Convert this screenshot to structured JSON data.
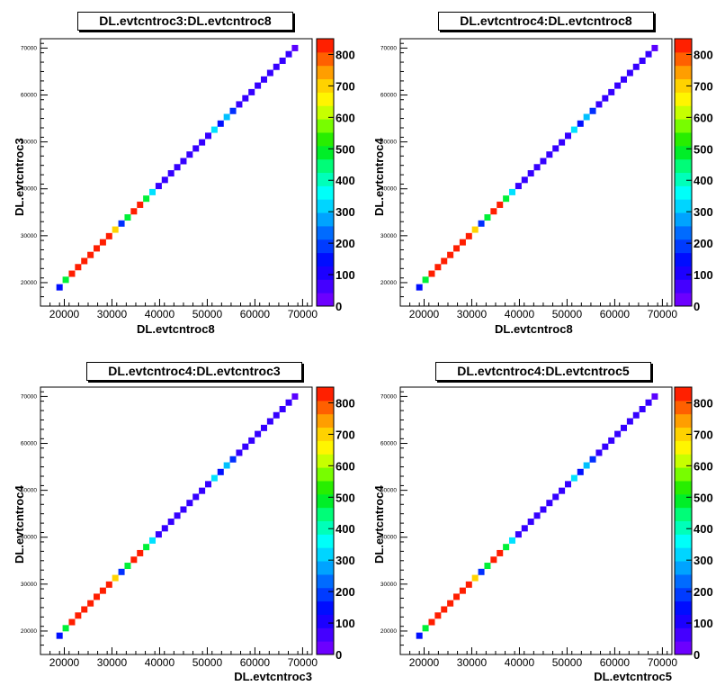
{
  "chart_data": [
    {
      "type": "heatmap",
      "title": "DL.evtcntroc3:DL.evtcntroc8",
      "xlabel": "DL.evtcntroc8",
      "ylabel": "DL.evtcntroc3",
      "xlim": [
        15000,
        72000
      ],
      "ylim": [
        15000,
        72000
      ],
      "x_ticks": [
        20000,
        30000,
        40000,
        50000,
        60000,
        70000
      ],
      "y_ticks": [
        20000,
        30000,
        40000,
        50000,
        60000,
        70000
      ],
      "z_ticks": [
        "0",
        "100",
        "200",
        "300",
        "400",
        "500",
        "600",
        "700",
        "800"
      ],
      "zlim": [
        0,
        850
      ],
      "points": [
        {
          "x": 19000,
          "y": 19000,
          "z": 150
        },
        {
          "x": 20300,
          "y": 20600,
          "z": 480
        },
        {
          "x": 21600,
          "y": 21900,
          "z": 830
        },
        {
          "x": 22900,
          "y": 23300,
          "z": 830
        },
        {
          "x": 24200,
          "y": 24600,
          "z": 830
        },
        {
          "x": 25500,
          "y": 25900,
          "z": 830
        },
        {
          "x": 26800,
          "y": 27300,
          "z": 830
        },
        {
          "x": 28100,
          "y": 28600,
          "z": 830
        },
        {
          "x": 29400,
          "y": 29900,
          "z": 830
        },
        {
          "x": 30700,
          "y": 31300,
          "z": 700
        },
        {
          "x": 32000,
          "y": 32600,
          "z": 180
        },
        {
          "x": 33300,
          "y": 33900,
          "z": 480
        },
        {
          "x": 34600,
          "y": 35200,
          "z": 830
        },
        {
          "x": 35900,
          "y": 36600,
          "z": 830
        },
        {
          "x": 37200,
          "y": 37900,
          "z": 480
        },
        {
          "x": 38500,
          "y": 39300,
          "z": 330
        },
        {
          "x": 39800,
          "y": 40600,
          "z": 80
        },
        {
          "x": 41100,
          "y": 41900,
          "z": 80
        },
        {
          "x": 42400,
          "y": 43300,
          "z": 80
        },
        {
          "x": 43700,
          "y": 44600,
          "z": 80
        },
        {
          "x": 45000,
          "y": 45900,
          "z": 80
        },
        {
          "x": 46300,
          "y": 47300,
          "z": 80
        },
        {
          "x": 47600,
          "y": 48600,
          "z": 80
        },
        {
          "x": 48900,
          "y": 49900,
          "z": 80
        },
        {
          "x": 50200,
          "y": 51300,
          "z": 80
        },
        {
          "x": 51500,
          "y": 52600,
          "z": 330
        },
        {
          "x": 52800,
          "y": 53900,
          "z": 150
        },
        {
          "x": 54100,
          "y": 55300,
          "z": 300
        },
        {
          "x": 55400,
          "y": 56600,
          "z": 180
        },
        {
          "x": 56700,
          "y": 58000,
          "z": 80
        },
        {
          "x": 58000,
          "y": 59300,
          "z": 80
        },
        {
          "x": 59300,
          "y": 60600,
          "z": 80
        },
        {
          "x": 60600,
          "y": 62000,
          "z": 80
        },
        {
          "x": 61900,
          "y": 63300,
          "z": 80
        },
        {
          "x": 63200,
          "y": 64700,
          "z": 80
        },
        {
          "x": 64500,
          "y": 66000,
          "z": 80
        },
        {
          "x": 65800,
          "y": 67300,
          "z": 80
        },
        {
          "x": 67100,
          "y": 68700,
          "z": 80
        },
        {
          "x": 68400,
          "y": 70000,
          "z": 40
        }
      ]
    },
    {
      "type": "heatmap",
      "title": "DL.evtcntroc4:DL.evtcntroc8",
      "xlabel": "DL.evtcntroc8",
      "ylabel": "DL.evtcntroc4",
      "xlim": [
        15000,
        72000
      ],
      "ylim": [
        15000,
        72000
      ],
      "x_ticks": [
        20000,
        30000,
        40000,
        50000,
        60000,
        70000
      ],
      "y_ticks": [
        20000,
        30000,
        40000,
        50000,
        60000,
        70000
      ],
      "z_ticks": [
        "0",
        "100",
        "200",
        "300",
        "400",
        "500",
        "600",
        "700",
        "800"
      ],
      "zlim": [
        0,
        850
      ],
      "points": [
        {
          "x": 19000,
          "y": 19000,
          "z": 150
        },
        {
          "x": 20300,
          "y": 20600,
          "z": 480
        },
        {
          "x": 21600,
          "y": 21900,
          "z": 830
        },
        {
          "x": 22900,
          "y": 23300,
          "z": 830
        },
        {
          "x": 24200,
          "y": 24600,
          "z": 830
        },
        {
          "x": 25500,
          "y": 25900,
          "z": 830
        },
        {
          "x": 26800,
          "y": 27300,
          "z": 830
        },
        {
          "x": 28100,
          "y": 28600,
          "z": 830
        },
        {
          "x": 29400,
          "y": 29900,
          "z": 830
        },
        {
          "x": 30700,
          "y": 31300,
          "z": 700
        },
        {
          "x": 32000,
          "y": 32600,
          "z": 180
        },
        {
          "x": 33300,
          "y": 33900,
          "z": 480
        },
        {
          "x": 34600,
          "y": 35200,
          "z": 830
        },
        {
          "x": 35900,
          "y": 36600,
          "z": 830
        },
        {
          "x": 37200,
          "y": 37900,
          "z": 480
        },
        {
          "x": 38500,
          "y": 39300,
          "z": 330
        },
        {
          "x": 39800,
          "y": 40600,
          "z": 80
        },
        {
          "x": 41100,
          "y": 41900,
          "z": 80
        },
        {
          "x": 42400,
          "y": 43300,
          "z": 80
        },
        {
          "x": 43700,
          "y": 44600,
          "z": 80
        },
        {
          "x": 45000,
          "y": 45900,
          "z": 80
        },
        {
          "x": 46300,
          "y": 47300,
          "z": 80
        },
        {
          "x": 47600,
          "y": 48600,
          "z": 80
        },
        {
          "x": 48900,
          "y": 49900,
          "z": 80
        },
        {
          "x": 50200,
          "y": 51300,
          "z": 80
        },
        {
          "x": 51500,
          "y": 52600,
          "z": 330
        },
        {
          "x": 52800,
          "y": 53900,
          "z": 150
        },
        {
          "x": 54100,
          "y": 55300,
          "z": 300
        },
        {
          "x": 55400,
          "y": 56600,
          "z": 180
        },
        {
          "x": 56700,
          "y": 58000,
          "z": 80
        },
        {
          "x": 58000,
          "y": 59300,
          "z": 80
        },
        {
          "x": 59300,
          "y": 60600,
          "z": 80
        },
        {
          "x": 60600,
          "y": 62000,
          "z": 80
        },
        {
          "x": 61900,
          "y": 63300,
          "z": 80
        },
        {
          "x": 63200,
          "y": 64700,
          "z": 80
        },
        {
          "x": 64500,
          "y": 66000,
          "z": 80
        },
        {
          "x": 65800,
          "y": 67300,
          "z": 80
        },
        {
          "x": 67100,
          "y": 68700,
          "z": 80
        },
        {
          "x": 68400,
          "y": 70000,
          "z": 40
        }
      ]
    },
    {
      "type": "heatmap",
      "title": "DL.evtcntroc4:DL.evtcntroc3",
      "xlabel": "DL.evtcntroc3",
      "ylabel": "DL.evtcntroc4",
      "xlim": [
        15000,
        72000
      ],
      "ylim": [
        15000,
        72000
      ],
      "x_ticks": [
        20000,
        30000,
        40000,
        50000,
        60000,
        70000
      ],
      "y_ticks": [
        20000,
        30000,
        40000,
        50000,
        60000,
        70000
      ],
      "z_ticks": [
        "0",
        "100",
        "200",
        "300",
        "400",
        "500",
        "600",
        "700",
        "800"
      ],
      "zlim": [
        0,
        850
      ],
      "points": [
        {
          "x": 19000,
          "y": 19000,
          "z": 150
        },
        {
          "x": 20300,
          "y": 20600,
          "z": 480
        },
        {
          "x": 21600,
          "y": 21900,
          "z": 830
        },
        {
          "x": 22900,
          "y": 23300,
          "z": 830
        },
        {
          "x": 24200,
          "y": 24600,
          "z": 830
        },
        {
          "x": 25500,
          "y": 25900,
          "z": 830
        },
        {
          "x": 26800,
          "y": 27300,
          "z": 830
        },
        {
          "x": 28100,
          "y": 28600,
          "z": 830
        },
        {
          "x": 29400,
          "y": 29900,
          "z": 830
        },
        {
          "x": 30700,
          "y": 31300,
          "z": 700
        },
        {
          "x": 32000,
          "y": 32600,
          "z": 180
        },
        {
          "x": 33300,
          "y": 33900,
          "z": 480
        },
        {
          "x": 34600,
          "y": 35200,
          "z": 830
        },
        {
          "x": 35900,
          "y": 36600,
          "z": 830
        },
        {
          "x": 37200,
          "y": 37900,
          "z": 480
        },
        {
          "x": 38500,
          "y": 39300,
          "z": 330
        },
        {
          "x": 39800,
          "y": 40600,
          "z": 80
        },
        {
          "x": 41100,
          "y": 41900,
          "z": 80
        },
        {
          "x": 42400,
          "y": 43300,
          "z": 80
        },
        {
          "x": 43700,
          "y": 44600,
          "z": 80
        },
        {
          "x": 45000,
          "y": 45900,
          "z": 80
        },
        {
          "x": 46300,
          "y": 47300,
          "z": 80
        },
        {
          "x": 47600,
          "y": 48600,
          "z": 80
        },
        {
          "x": 48900,
          "y": 49900,
          "z": 80
        },
        {
          "x": 50200,
          "y": 51300,
          "z": 80
        },
        {
          "x": 51500,
          "y": 52600,
          "z": 330
        },
        {
          "x": 52800,
          "y": 53900,
          "z": 150
        },
        {
          "x": 54100,
          "y": 55300,
          "z": 300
        },
        {
          "x": 55400,
          "y": 56600,
          "z": 180
        },
        {
          "x": 56700,
          "y": 58000,
          "z": 80
        },
        {
          "x": 58000,
          "y": 59300,
          "z": 80
        },
        {
          "x": 59300,
          "y": 60600,
          "z": 80
        },
        {
          "x": 60600,
          "y": 62000,
          "z": 80
        },
        {
          "x": 61900,
          "y": 63300,
          "z": 80
        },
        {
          "x": 63200,
          "y": 64700,
          "z": 80
        },
        {
          "x": 64500,
          "y": 66000,
          "z": 80
        },
        {
          "x": 65800,
          "y": 67300,
          "z": 80
        },
        {
          "x": 67100,
          "y": 68700,
          "z": 80
        },
        {
          "x": 68400,
          "y": 70000,
          "z": 40
        }
      ]
    },
    {
      "type": "heatmap",
      "title": "DL.evtcntroc4:DL.evtcntroc5",
      "xlabel": "DL.evtcntroc5",
      "ylabel": "DL.evtcntroc4",
      "xlim": [
        15000,
        72000
      ],
      "ylim": [
        15000,
        72000
      ],
      "x_ticks": [
        20000,
        30000,
        40000,
        50000,
        60000,
        70000
      ],
      "y_ticks": [
        20000,
        30000,
        40000,
        50000,
        60000,
        70000
      ],
      "z_ticks": [
        "0",
        "100",
        "200",
        "300",
        "400",
        "500",
        "600",
        "700",
        "800"
      ],
      "zlim": [
        0,
        850
      ],
      "points": [
        {
          "x": 19000,
          "y": 19000,
          "z": 150
        },
        {
          "x": 20300,
          "y": 20600,
          "z": 480
        },
        {
          "x": 21600,
          "y": 21900,
          "z": 830
        },
        {
          "x": 22900,
          "y": 23300,
          "z": 830
        },
        {
          "x": 24200,
          "y": 24600,
          "z": 830
        },
        {
          "x": 25500,
          "y": 25900,
          "z": 830
        },
        {
          "x": 26800,
          "y": 27300,
          "z": 830
        },
        {
          "x": 28100,
          "y": 28600,
          "z": 830
        },
        {
          "x": 29400,
          "y": 29900,
          "z": 830
        },
        {
          "x": 30700,
          "y": 31300,
          "z": 700
        },
        {
          "x": 32000,
          "y": 32600,
          "z": 180
        },
        {
          "x": 33300,
          "y": 33900,
          "z": 480
        },
        {
          "x": 34600,
          "y": 35200,
          "z": 830
        },
        {
          "x": 35900,
          "y": 36600,
          "z": 830
        },
        {
          "x": 37200,
          "y": 37900,
          "z": 480
        },
        {
          "x": 38500,
          "y": 39300,
          "z": 330
        },
        {
          "x": 39800,
          "y": 40600,
          "z": 80
        },
        {
          "x": 41100,
          "y": 41900,
          "z": 80
        },
        {
          "x": 42400,
          "y": 43300,
          "z": 80
        },
        {
          "x": 43700,
          "y": 44600,
          "z": 80
        },
        {
          "x": 45000,
          "y": 45900,
          "z": 80
        },
        {
          "x": 46300,
          "y": 47300,
          "z": 80
        },
        {
          "x": 47600,
          "y": 48600,
          "z": 80
        },
        {
          "x": 48900,
          "y": 49900,
          "z": 80
        },
        {
          "x": 50200,
          "y": 51300,
          "z": 80
        },
        {
          "x": 51500,
          "y": 52600,
          "z": 330
        },
        {
          "x": 52800,
          "y": 53900,
          "z": 150
        },
        {
          "x": 54100,
          "y": 55300,
          "z": 300
        },
        {
          "x": 55400,
          "y": 56600,
          "z": 180
        },
        {
          "x": 56700,
          "y": 58000,
          "z": 80
        },
        {
          "x": 58000,
          "y": 59300,
          "z": 80
        },
        {
          "x": 59300,
          "y": 60600,
          "z": 80
        },
        {
          "x": 60600,
          "y": 62000,
          "z": 80
        },
        {
          "x": 61900,
          "y": 63300,
          "z": 80
        },
        {
          "x": 63200,
          "y": 64700,
          "z": 80
        },
        {
          "x": 64500,
          "y": 66000,
          "z": 80
        },
        {
          "x": 65800,
          "y": 67300,
          "z": 80
        },
        {
          "x": 67100,
          "y": 68700,
          "z": 80
        },
        {
          "x": 68400,
          "y": 70000,
          "z": 40
        }
      ]
    }
  ]
}
